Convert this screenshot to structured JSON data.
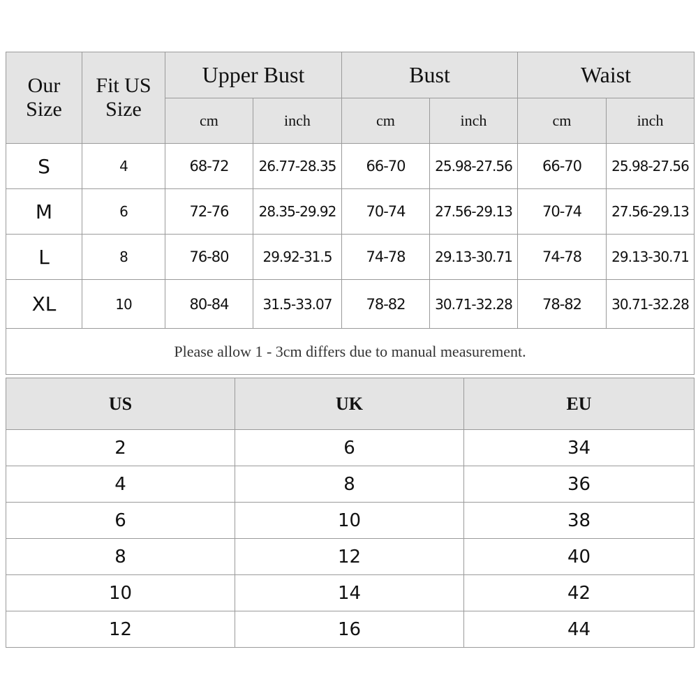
{
  "size_table": {
    "headers": {
      "our_size": "Our Size",
      "fit_us_size": "Fit US Size",
      "groups": [
        "Upper Bust",
        "Bust",
        "Waist"
      ],
      "units": [
        "cm",
        "inch",
        "cm",
        "inch",
        "cm",
        "inch"
      ]
    },
    "rows": [
      [
        "S",
        "4",
        "68-72",
        "26.77-28.35",
        "66-70",
        "25.98-27.56",
        "66-70",
        "25.98-27.56"
      ],
      [
        "M",
        "6",
        "72-76",
        "28.35-29.92",
        "70-74",
        "27.56-29.13",
        "70-74",
        "27.56-29.13"
      ],
      [
        "L",
        "8",
        "76-80",
        "29.92-31.5",
        "74-78",
        "29.13-30.71",
        "74-78",
        "29.13-30.71"
      ],
      [
        "XL",
        "10",
        "80-84",
        "31.5-33.07",
        "78-82",
        "30.71-32.28",
        "78-82",
        "30.71-32.28"
      ]
    ],
    "note": "Please allow 1 - 3cm differs due to manual measurement."
  },
  "conversion_table": {
    "headers": [
      "US",
      "UK",
      "EU"
    ],
    "rows": [
      [
        "2",
        "6",
        "34"
      ],
      [
        "4",
        "8",
        "36"
      ],
      [
        "6",
        "10",
        "38"
      ],
      [
        "8",
        "12",
        "40"
      ],
      [
        "10",
        "14",
        "42"
      ],
      [
        "12",
        "16",
        "44"
      ]
    ]
  },
  "colors": {
    "header_bg": "#e4e4e4",
    "border": "#9a9a9a"
  }
}
